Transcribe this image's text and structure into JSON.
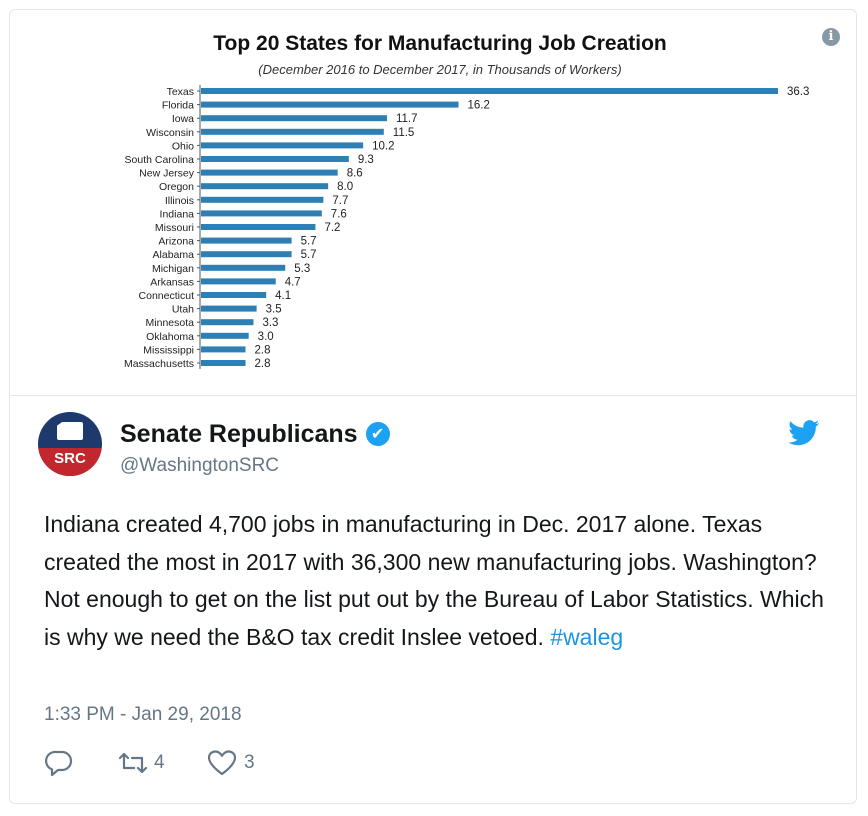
{
  "chart_data": {
    "type": "bar",
    "orientation": "horizontal",
    "title": "Top 20 States for Manufacturing Job Creation",
    "subtitle": "(December 2016 to December 2017, in Thousands of Workers)",
    "categories": [
      "Texas",
      "Florida",
      "Iowa",
      "Wisconsin",
      "Ohio",
      "South Carolina",
      "New Jersey",
      "Oregon",
      "Illinois",
      "Indiana",
      "Missouri",
      "Arizona",
      "Alabama",
      "Michigan",
      "Arkansas",
      "Connecticut",
      "Utah",
      "Minnesota",
      "Oklahoma",
      "Mississippi",
      "Massachusetts"
    ],
    "values": [
      36.3,
      16.2,
      11.7,
      11.5,
      10.2,
      9.3,
      8.6,
      8.0,
      7.7,
      7.6,
      7.2,
      5.7,
      5.7,
      5.3,
      4.7,
      4.1,
      3.5,
      3.3,
      3.0,
      2.8,
      2.8
    ],
    "value_labels": [
      "36.3",
      "16.2",
      "11.7",
      "11.5",
      "10.2",
      "9.3",
      "8.6",
      "8.0",
      "7.7",
      "7.6",
      "7.2",
      "5.7",
      "5.7",
      "5.3",
      "4.7",
      "4.1",
      "3.5",
      "3.3",
      "3.0",
      "2.8",
      "2.8"
    ],
    "bar_color": "#2e7fb4",
    "grid": false,
    "legend": "none"
  },
  "tweet": {
    "author_name": "Senate Republicans",
    "handle": "@WashingtonSRC",
    "avatar_text": "SRC",
    "text_main": "Indiana created 4,700 jobs in manufacturing in Dec. 2017 alone. Texas created the most in 2017 with 36,300 new manufacturing jobs. Washington? Not enough to get on the list put out by the Bureau of Labor Statistics. Which is why we need the B&O tax credit Inslee vetoed.",
    "hashtag": "#waleg",
    "timestamp": "1:33 PM - Jan 29, 2018",
    "retweet_count": "4",
    "like_count": "3"
  },
  "icons": {
    "info": "info-icon",
    "verified": "verified-badge-icon",
    "brand": "twitter-bird-icon",
    "reply": "reply-icon",
    "retweet": "retweet-icon",
    "like": "heart-icon"
  },
  "colors": {
    "link": "#1b95e0",
    "twitter_blue": "#1da1f2",
    "muted": "#657786",
    "bar": "#2e7fb4"
  }
}
